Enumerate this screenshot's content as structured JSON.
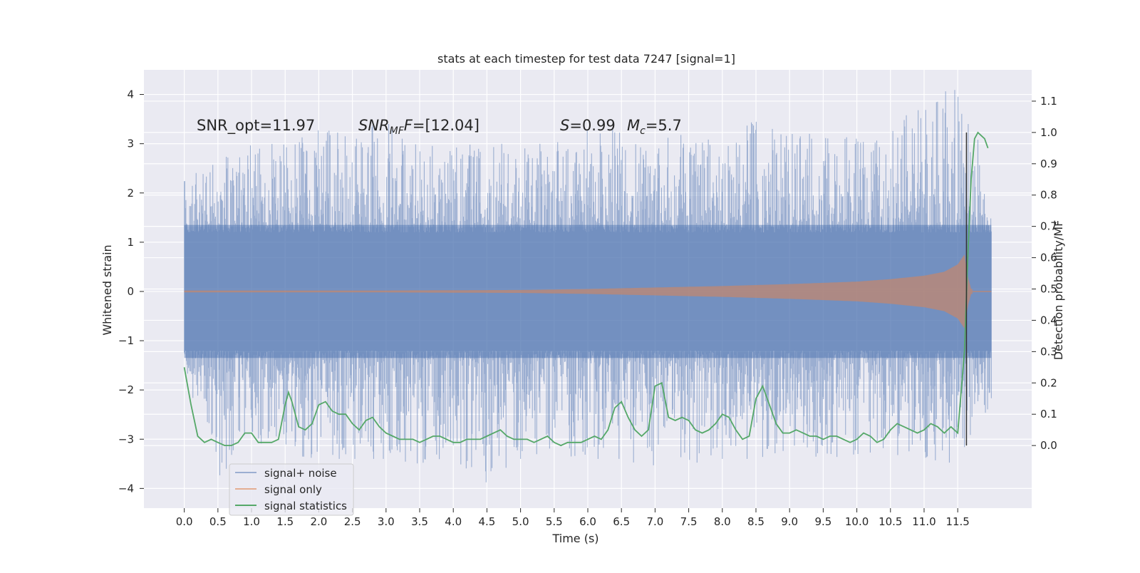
{
  "chart_data": {
    "type": "line",
    "title": "stats at each timestep for test data 7247 [signal=1]",
    "xlabel": "Time (s)",
    "ylabel_left": "Whitened strain",
    "ylabel_right": "Detection probability/MF",
    "xlim": [
      -0.6,
      12.6
    ],
    "ylim_left": [
      -4.4,
      4.5
    ],
    "ylim_right": [
      -0.2,
      1.2
    ],
    "x_ticks": [
      "0.0",
      "0.5",
      "1.0",
      "1.5",
      "2.0",
      "2.5",
      "3.0",
      "3.5",
      "4.0",
      "4.5",
      "5.0",
      "5.5",
      "6.0",
      "6.5",
      "7.0",
      "7.5",
      "8.0",
      "8.5",
      "9.0",
      "9.5",
      "10.0",
      "10.5",
      "11.0",
      "11.5"
    ],
    "y_ticks_left": [
      "−4",
      "−3",
      "−2",
      "−1",
      "0",
      "1",
      "2",
      "3",
      "4"
    ],
    "y_ticks_right": [
      "0.0",
      "0.1",
      "0.2",
      "0.3",
      "0.4",
      "0.5",
      "0.6",
      "0.7",
      "0.8",
      "0.9",
      "1.0",
      "1.1"
    ],
    "grid": true,
    "legend_position": "lower-left",
    "annotations": {
      "snr_opt": "SNR_opt=11.97",
      "snr_mf_sym": "SNR",
      "snr_mf_sub": "MF",
      "snr_mf_val": "=[12.04]",
      "s_sym": "S",
      "s_val": "=0.99",
      "mc_sym": "M",
      "mc_sub": "c",
      "mc_val": "=5.7"
    },
    "marker_x": 11.63,
    "series": [
      {
        "name": "signal+ noise",
        "color": "#4c72b0",
        "axis": "left",
        "description": "whitened noise + signal, approx amplitude envelope",
        "upper_envelope": [
          [
            0.0,
            2.3
          ],
          [
            0.5,
            2.7
          ],
          [
            1.0,
            3.0
          ],
          [
            1.5,
            3.0
          ],
          [
            2.0,
            3.3
          ],
          [
            2.5,
            3.2
          ],
          [
            3.0,
            3.5
          ],
          [
            3.5,
            3.0
          ],
          [
            4.0,
            3.0
          ],
          [
            4.5,
            3.0
          ],
          [
            5.0,
            3.0
          ],
          [
            5.5,
            3.0
          ],
          [
            6.0,
            3.3
          ],
          [
            6.5,
            3.3
          ],
          [
            7.0,
            3.1
          ],
          [
            7.5,
            3.2
          ],
          [
            8.0,
            3.0
          ],
          [
            8.5,
            3.5
          ],
          [
            9.0,
            3.2
          ],
          [
            9.5,
            3.2
          ],
          [
            10.0,
            3.1
          ],
          [
            10.5,
            3.2
          ],
          [
            11.0,
            4.0
          ],
          [
            11.5,
            4.1
          ],
          [
            12.0,
            2.4
          ]
        ],
        "lower_envelope": [
          [
            0.0,
            -1.6
          ],
          [
            0.5,
            -3.8
          ],
          [
            1.0,
            -3.0
          ],
          [
            1.5,
            -3.3
          ],
          [
            2.0,
            -3.4
          ],
          [
            2.5,
            -3.4
          ],
          [
            3.0,
            -3.4
          ],
          [
            3.5,
            -3.5
          ],
          [
            4.0,
            -3.4
          ],
          [
            4.5,
            -3.9
          ],
          [
            5.0,
            -3.4
          ],
          [
            5.5,
            -3.3
          ],
          [
            6.0,
            -3.4
          ],
          [
            6.5,
            -3.4
          ],
          [
            7.0,
            -3.6
          ],
          [
            7.5,
            -3.5
          ],
          [
            8.0,
            -3.4
          ],
          [
            8.5,
            -3.4
          ],
          [
            9.0,
            -3.2
          ],
          [
            9.5,
            -3.4
          ],
          [
            10.0,
            -3.3
          ],
          [
            10.5,
            -3.3
          ],
          [
            11.0,
            -3.4
          ],
          [
            11.5,
            -3.5
          ],
          [
            12.0,
            -2.3
          ]
        ]
      },
      {
        "name": "signal only",
        "color": "#dd8452",
        "axis": "left",
        "envelope": [
          [
            0.0,
            0.02
          ],
          [
            3.0,
            0.02
          ],
          [
            5.0,
            0.03
          ],
          [
            6.0,
            0.05
          ],
          [
            7.0,
            0.08
          ],
          [
            8.0,
            0.11
          ],
          [
            9.0,
            0.15
          ],
          [
            10.0,
            0.2
          ],
          [
            10.5,
            0.25
          ],
          [
            11.0,
            0.32
          ],
          [
            11.3,
            0.4
          ],
          [
            11.5,
            0.55
          ],
          [
            11.6,
            0.75
          ],
          [
            11.65,
            0.3
          ],
          [
            11.7,
            0.05
          ],
          [
            12.0,
            0.02
          ]
        ]
      },
      {
        "name": "signal statistics",
        "color": "#55a868",
        "axis": "right",
        "points": [
          [
            0.0,
            0.25
          ],
          [
            0.1,
            0.13
          ],
          [
            0.2,
            0.03
          ],
          [
            0.3,
            0.01
          ],
          [
            0.4,
            0.02
          ],
          [
            0.5,
            0.01
          ],
          [
            0.6,
            0.0
          ],
          [
            0.7,
            0.0
          ],
          [
            0.8,
            0.01
          ],
          [
            0.9,
            0.04
          ],
          [
            1.0,
            0.04
          ],
          [
            1.1,
            0.01
          ],
          [
            1.2,
            0.01
          ],
          [
            1.3,
            0.01
          ],
          [
            1.4,
            0.02
          ],
          [
            1.5,
            0.13
          ],
          [
            1.55,
            0.17
          ],
          [
            1.6,
            0.14
          ],
          [
            1.7,
            0.06
          ],
          [
            1.8,
            0.05
          ],
          [
            1.9,
            0.07
          ],
          [
            2.0,
            0.13
          ],
          [
            2.1,
            0.14
          ],
          [
            2.2,
            0.11
          ],
          [
            2.3,
            0.1
          ],
          [
            2.4,
            0.1
          ],
          [
            2.5,
            0.07
          ],
          [
            2.6,
            0.05
          ],
          [
            2.7,
            0.08
          ],
          [
            2.8,
            0.09
          ],
          [
            2.9,
            0.06
          ],
          [
            3.0,
            0.04
          ],
          [
            3.1,
            0.03
          ],
          [
            3.2,
            0.02
          ],
          [
            3.3,
            0.02
          ],
          [
            3.4,
            0.02
          ],
          [
            3.5,
            0.01
          ],
          [
            3.6,
            0.02
          ],
          [
            3.7,
            0.03
          ],
          [
            3.8,
            0.03
          ],
          [
            3.9,
            0.02
          ],
          [
            4.0,
            0.01
          ],
          [
            4.1,
            0.01
          ],
          [
            4.2,
            0.02
          ],
          [
            4.3,
            0.02
          ],
          [
            4.4,
            0.02
          ],
          [
            4.5,
            0.03
          ],
          [
            4.6,
            0.04
          ],
          [
            4.7,
            0.05
          ],
          [
            4.8,
            0.03
          ],
          [
            4.9,
            0.02
          ],
          [
            5.0,
            0.02
          ],
          [
            5.1,
            0.02
          ],
          [
            5.2,
            0.01
          ],
          [
            5.3,
            0.02
          ],
          [
            5.4,
            0.03
          ],
          [
            5.5,
            0.01
          ],
          [
            5.6,
            0.0
          ],
          [
            5.7,
            0.01
          ],
          [
            5.8,
            0.01
          ],
          [
            5.9,
            0.01
          ],
          [
            6.0,
            0.02
          ],
          [
            6.1,
            0.03
          ],
          [
            6.2,
            0.02
          ],
          [
            6.3,
            0.05
          ],
          [
            6.4,
            0.12
          ],
          [
            6.5,
            0.14
          ],
          [
            6.6,
            0.09
          ],
          [
            6.7,
            0.05
          ],
          [
            6.8,
            0.03
          ],
          [
            6.9,
            0.05
          ],
          [
            7.0,
            0.19
          ],
          [
            7.1,
            0.2
          ],
          [
            7.2,
            0.09
          ],
          [
            7.3,
            0.08
          ],
          [
            7.4,
            0.09
          ],
          [
            7.5,
            0.08
          ],
          [
            7.6,
            0.05
          ],
          [
            7.7,
            0.04
          ],
          [
            7.8,
            0.05
          ],
          [
            7.9,
            0.07
          ],
          [
            8.0,
            0.1
          ],
          [
            8.1,
            0.09
          ],
          [
            8.2,
            0.05
          ],
          [
            8.3,
            0.02
          ],
          [
            8.4,
            0.03
          ],
          [
            8.5,
            0.15
          ],
          [
            8.6,
            0.19
          ],
          [
            8.7,
            0.13
          ],
          [
            8.8,
            0.07
          ],
          [
            8.9,
            0.04
          ],
          [
            9.0,
            0.04
          ],
          [
            9.1,
            0.05
          ],
          [
            9.2,
            0.04
          ],
          [
            9.3,
            0.03
          ],
          [
            9.4,
            0.03
          ],
          [
            9.5,
            0.02
          ],
          [
            9.6,
            0.03
          ],
          [
            9.7,
            0.03
          ],
          [
            9.8,
            0.02
          ],
          [
            9.9,
            0.01
          ],
          [
            10.0,
            0.02
          ],
          [
            10.1,
            0.04
          ],
          [
            10.2,
            0.03
          ],
          [
            10.3,
            0.01
          ],
          [
            10.4,
            0.02
          ],
          [
            10.5,
            0.05
          ],
          [
            10.6,
            0.07
          ],
          [
            10.7,
            0.06
          ],
          [
            10.8,
            0.05
          ],
          [
            10.9,
            0.04
          ],
          [
            11.0,
            0.05
          ],
          [
            11.1,
            0.07
          ],
          [
            11.2,
            0.06
          ],
          [
            11.3,
            0.04
          ],
          [
            11.4,
            0.06
          ],
          [
            11.5,
            0.04
          ],
          [
            11.6,
            0.3
          ],
          [
            11.65,
            0.6
          ],
          [
            11.7,
            0.85
          ],
          [
            11.75,
            0.98
          ],
          [
            11.8,
            1.0
          ],
          [
            11.85,
            0.99
          ],
          [
            11.9,
            0.98
          ],
          [
            11.95,
            0.95
          ]
        ]
      }
    ]
  }
}
